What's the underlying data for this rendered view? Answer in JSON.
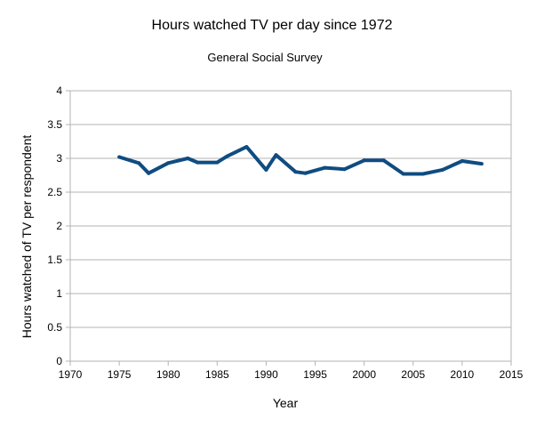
{
  "chart_data": {
    "type": "line",
    "title": "Hours watched TV per day since 1972",
    "subtitle": "General Social Survey",
    "xlabel": "Year",
    "ylabel": "Hours watched of TV per respondent",
    "xlim": [
      1970,
      2015
    ],
    "ylim": [
      0,
      4
    ],
    "x_ticks": [
      "1970",
      "1975",
      "1980",
      "1985",
      "1990",
      "1995",
      "2000",
      "2005",
      "2010",
      "2015"
    ],
    "y_ticks": [
      "0",
      "0.5",
      "1",
      "1.5",
      "2",
      "2.5",
      "3",
      "3.5",
      "4"
    ],
    "grid": true,
    "series": [
      {
        "name": "Hours watched TV per day",
        "color": "#0f4c81",
        "x": [
          1975,
          1977,
          1978,
          1980,
          1982,
          1983,
          1985,
          1986,
          1988,
          1990,
          1991,
          1993,
          1994,
          1996,
          1998,
          2000,
          2002,
          2004,
          2006,
          2008,
          2010,
          2012
        ],
        "y": [
          3.02,
          2.93,
          2.78,
          2.93,
          3.0,
          2.94,
          2.94,
          3.03,
          3.17,
          2.83,
          3.05,
          2.8,
          2.78,
          2.86,
          2.84,
          2.97,
          2.97,
          2.77,
          2.77,
          2.83,
          2.96,
          2.92
        ]
      }
    ]
  }
}
